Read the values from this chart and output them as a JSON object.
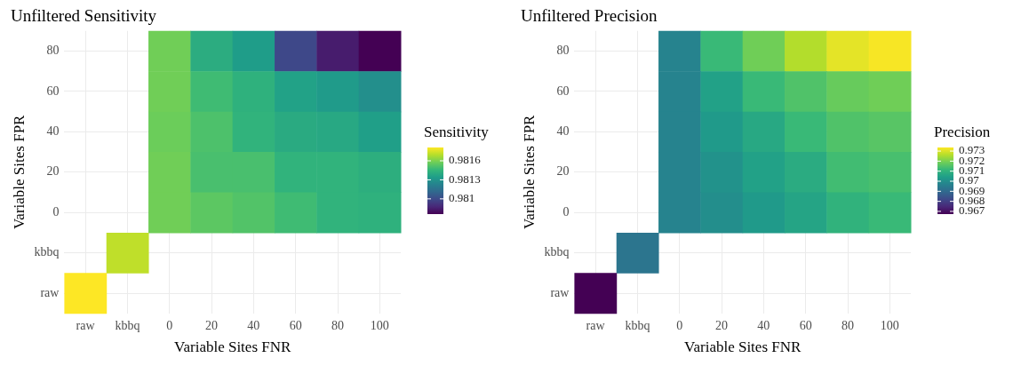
{
  "chart_data": [
    {
      "type": "heatmap",
      "title": "Unfiltered Sensitivity",
      "xlabel": "Variable Sites FNR",
      "ylabel": "Variable Sites FPR",
      "clabel": "Sensitivity",
      "grid": true,
      "categories": [
        "raw",
        "kbbq",
        "0",
        "20",
        "40",
        "60",
        "80",
        "100"
      ],
      "y_categories": [
        "80",
        "60",
        "40",
        "20",
        "0",
        "kbbq",
        "raw"
      ],
      "cells": [
        [
          null,
          null,
          0.98158,
          0.98141,
          0.98134,
          0.98099,
          0.98084,
          0.98076
        ],
        [
          null,
          null,
          0.98158,
          0.98148,
          0.98143,
          0.98136,
          0.98133,
          0.98128
        ],
        [
          null,
          null,
          0.98157,
          0.98151,
          0.98144,
          0.9814,
          0.98139,
          0.98135
        ],
        [
          null,
          null,
          0.98158,
          0.9815,
          0.9815,
          0.98144,
          0.98144,
          0.98142
        ],
        [
          null,
          null,
          0.98158,
          0.98154,
          0.98152,
          0.98148,
          0.98144,
          0.98143
        ],
        [
          null,
          0.98171,
          null,
          null,
          null,
          null,
          null,
          null
        ],
        [
          0.98181,
          null,
          null,
          null,
          null,
          null,
          null,
          null
        ]
      ],
      "clim": [
        0.98076,
        0.98181
      ],
      "cticks": [
        0.981,
        0.9813,
        0.9816
      ]
    },
    {
      "type": "heatmap",
      "title": "Unfiltered Precision",
      "xlabel": "Variable Sites FNR",
      "ylabel": "Variable Sites FPR",
      "clabel": "Precision",
      "grid": true,
      "categories": [
        "raw",
        "kbbq",
        "0",
        "20",
        "40",
        "60",
        "80",
        "100"
      ],
      "y_categories": [
        "80",
        "60",
        "40",
        "20",
        "0",
        "kbbq",
        "raw"
      ],
      "cells": [
        [
          null,
          null,
          0.9697,
          0.9712,
          0.9719,
          0.9726,
          0.9731,
          0.9733
        ],
        [
          null,
          null,
          0.9697,
          0.9705,
          0.9712,
          0.9715,
          0.9718,
          0.9719
        ],
        [
          null,
          null,
          0.9697,
          0.9703,
          0.9707,
          0.9712,
          0.9715,
          0.9716
        ],
        [
          null,
          null,
          0.9697,
          0.9701,
          0.9705,
          0.9708,
          0.9713,
          0.9714
        ],
        [
          null,
          null,
          0.9697,
          0.97,
          0.9703,
          0.9706,
          0.971,
          0.9712
        ],
        [
          null,
          0.9693,
          null,
          null,
          null,
          null,
          null,
          null
        ],
        [
          0.9667,
          null,
          null,
          null,
          null,
          null,
          null,
          null
        ]
      ],
      "clim": [
        0.96673,
        0.97336
      ],
      "cticks": [
        0.967,
        0.968,
        0.969,
        0.97,
        0.971,
        0.972,
        0.973
      ]
    }
  ]
}
